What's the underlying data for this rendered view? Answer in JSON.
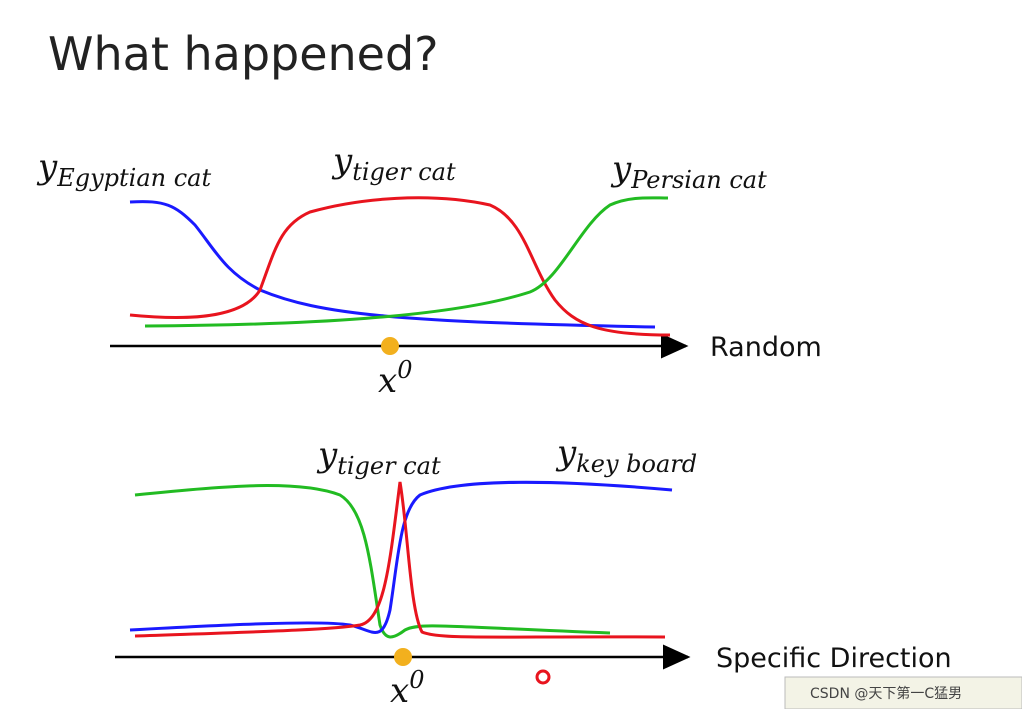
{
  "header": {
    "title": "What happened?"
  },
  "panels": [
    {
      "labels": [
        {
          "base": "y",
          "sub": "Egyptian cat"
        },
        {
          "base": "y",
          "sub": "tiger cat"
        },
        {
          "base": "y",
          "sub": "Persian cat"
        }
      ],
      "axis_label": "Random",
      "point": {
        "base": "x",
        "sup": "0"
      }
    },
    {
      "labels": [
        {
          "base": "y",
          "sub": "tiger cat"
        },
        {
          "base": "y",
          "sub": "key board"
        }
      ],
      "axis_label": "Specific Direction",
      "point": {
        "base": "x",
        "sup": "0"
      }
    }
  ],
  "watermark": "CSDN @天下第一C猛男"
}
